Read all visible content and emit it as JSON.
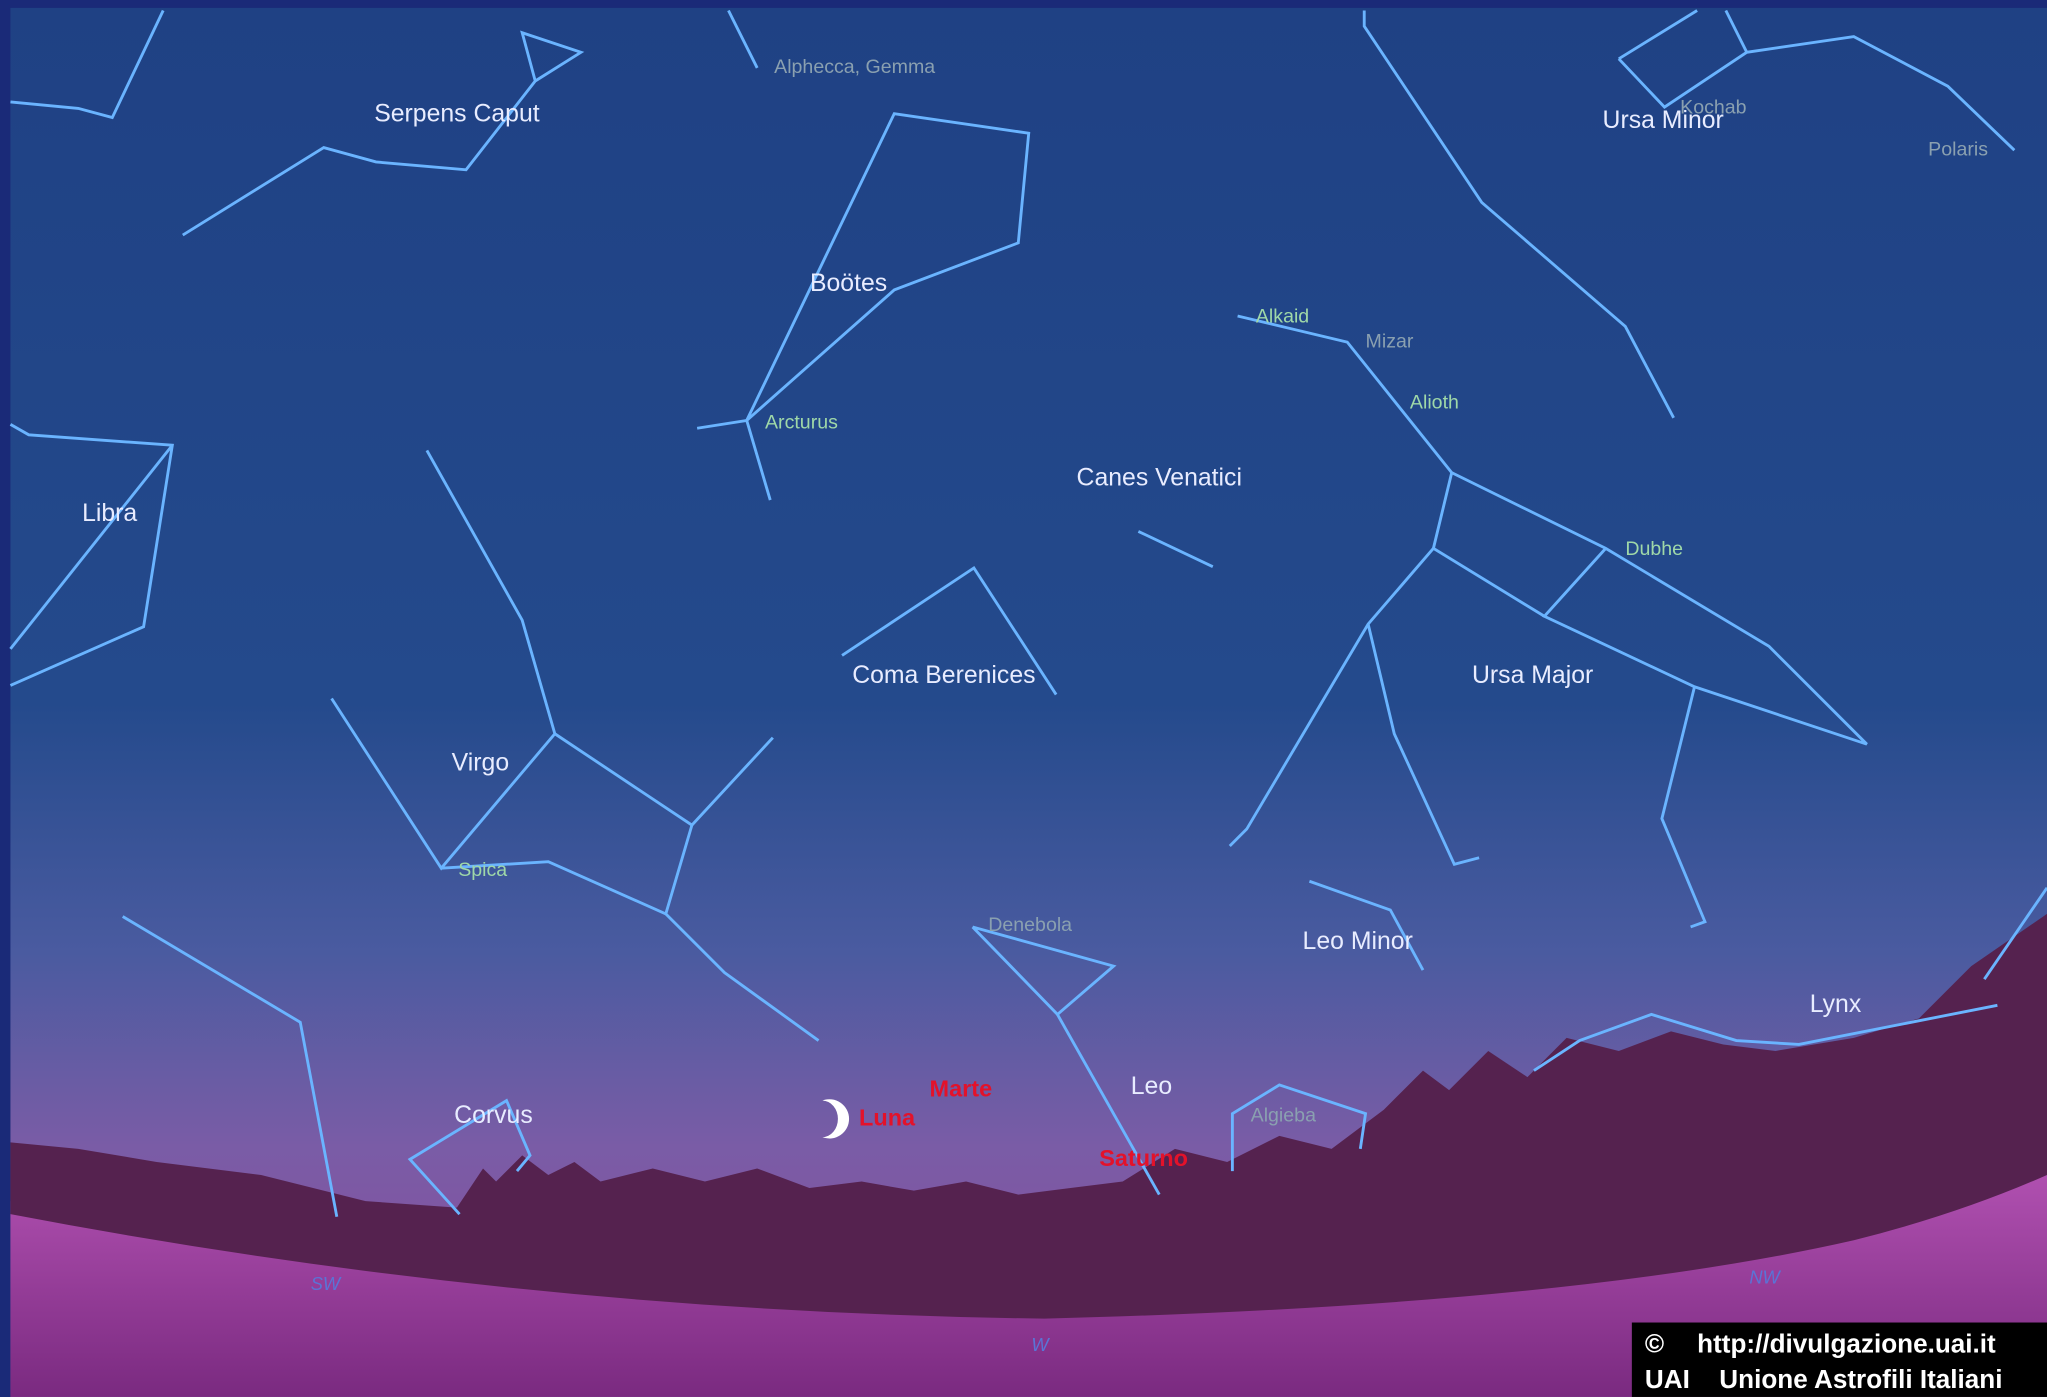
{
  "constellations": [
    "Serpens Caput",
    "Ursa Minor",
    "Boötes",
    "Libra",
    "Canes Venatici",
    "Coma Berenices",
    "Ursa Major",
    "Virgo",
    "Leo Minor",
    "Lynx",
    "Leo",
    "Corvus"
  ],
  "stars": [
    "Alphecca, Gemma",
    "Kochab",
    "Polaris",
    "Alkaid",
    "Mizar",
    "Alioth",
    "Arcturus",
    "Dubhe",
    "Spica",
    "Denebola",
    "Algieba"
  ],
  "planets": [
    "Marte",
    "Luna",
    "Saturno"
  ],
  "directions": [
    "SW",
    "W",
    "NW"
  ],
  "credit": {
    "symbol": "©",
    "url": "http://divulgazione.uai.it",
    "org": "UAI",
    "name": "Unione Astrofili Italiani"
  }
}
